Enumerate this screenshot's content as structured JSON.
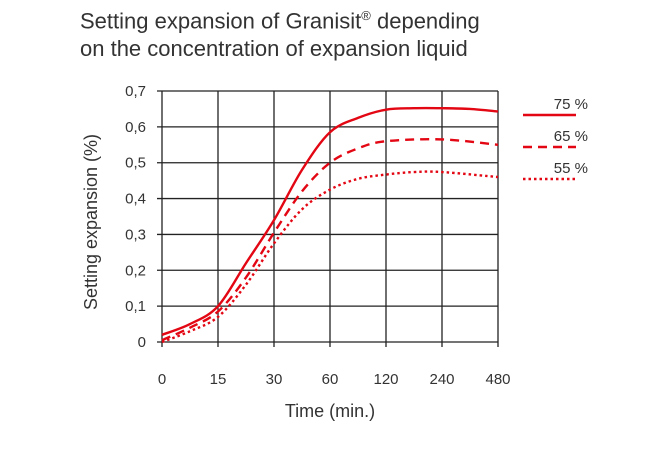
{
  "chart_data": {
    "type": "line",
    "title_line1": "Setting expansion of Granisit",
    "title_sup": "®",
    "title_line1_end": " depending",
    "title_line2": "on the concentration of expansion liquid",
    "xlabel": "Time (min.)",
    "ylabel": "Setting expansion (%)",
    "x_ticks": [
      "0",
      "15",
      "30",
      "60",
      "120",
      "240",
      "480"
    ],
    "y_ticks": [
      "0",
      "0,1",
      "0,2",
      "0,3",
      "0,4",
      "0,5",
      "0,6",
      "0,7"
    ],
    "ylim": [
      0,
      0.7
    ],
    "grid": true,
    "legend_position": "right",
    "color": "#e30613",
    "series": [
      {
        "name": "75 %",
        "style": "solid",
        "points": [
          [
            0,
            0.02
          ],
          [
            0.5,
            0.05
          ],
          [
            1,
            0.1
          ],
          [
            1.5,
            0.22
          ],
          [
            2,
            0.34
          ],
          [
            2.5,
            0.48
          ],
          [
            3,
            0.585
          ],
          [
            3.5,
            0.625
          ],
          [
            4,
            0.648
          ],
          [
            4.5,
            0.652
          ],
          [
            5,
            0.652
          ],
          [
            5.5,
            0.65
          ],
          [
            6,
            0.643
          ]
        ]
      },
      {
        "name": "65 %",
        "style": "dashed",
        "points": [
          [
            0,
            0.005
          ],
          [
            0.5,
            0.04
          ],
          [
            1,
            0.085
          ],
          [
            1.5,
            0.18
          ],
          [
            2,
            0.305
          ],
          [
            2.5,
            0.42
          ],
          [
            3,
            0.5
          ],
          [
            3.5,
            0.54
          ],
          [
            4,
            0.56
          ],
          [
            5,
            0.565
          ],
          [
            6,
            0.55
          ]
        ]
      },
      {
        "name": "55 %",
        "style": "dotted",
        "points": [
          [
            0,
            0
          ],
          [
            0.5,
            0.03
          ],
          [
            1,
            0.07
          ],
          [
            1.5,
            0.16
          ],
          [
            2,
            0.275
          ],
          [
            2.5,
            0.37
          ],
          [
            3,
            0.425
          ],
          [
            3.5,
            0.455
          ],
          [
            4,
            0.467
          ],
          [
            4.5,
            0.474
          ],
          [
            5,
            0.474
          ],
          [
            6,
            0.46
          ]
        ]
      }
    ]
  }
}
